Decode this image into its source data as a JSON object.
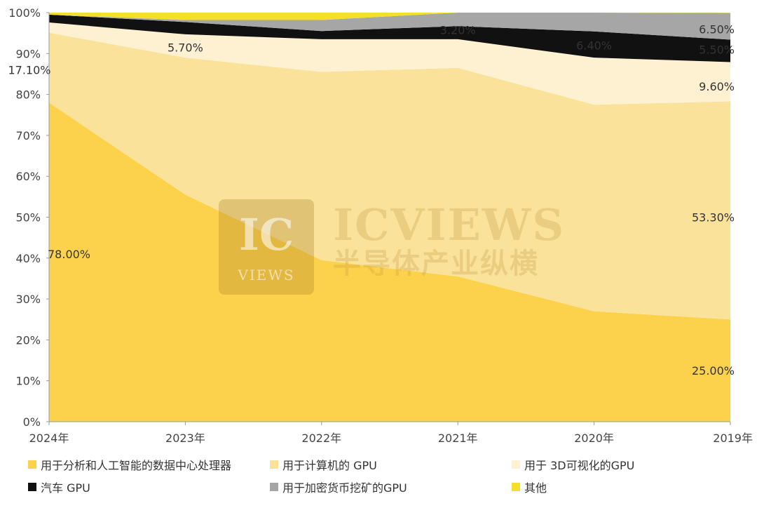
{
  "chart_data": {
    "type": "area",
    "stacked": true,
    "categories": [
      "2024年",
      "2023年",
      "2022年",
      "2021年",
      "2020年",
      "2019年"
    ],
    "y_ticks": [
      "0%",
      "10%",
      "20%",
      "30%",
      "40%",
      "50%",
      "60%",
      "70%",
      "80%",
      "90%",
      "100%"
    ],
    "ylim": [
      0,
      100
    ],
    "series": [
      {
        "name": "用于分析和人工智能的数据中心处理器",
        "color": "#FCD24D",
        "values": [
          78.0,
          55.5,
          39.5,
          35.5,
          27.0,
          25.0
        ]
      },
      {
        "name": "用于计算机的 GPU",
        "color": "#FBE29A",
        "values": [
          17.1,
          33.5,
          46.0,
          51.0,
          50.5,
          53.3
        ]
      },
      {
        "name": "用于 3D可视化的GPU",
        "color": "#FDF1D2",
        "values": [
          2.5,
          5.7,
          8.0,
          7.0,
          11.5,
          9.6
        ]
      },
      {
        "name": "汽车 GPU",
        "color": "#111111",
        "values": [
          1.9,
          3.0,
          2.0,
          3.2,
          6.4,
          5.5
        ]
      },
      {
        "name": "用于加密货币挖矿的GPU",
        "color": "#A6A6A6",
        "values": [
          0.0,
          0.5,
          2.7,
          3.3,
          4.6,
          6.5
        ]
      },
      {
        "name": "其他",
        "color": "#F4E02A",
        "values": [
          0.5,
          1.8,
          1.8,
          0.0,
          0.0,
          0.1
        ]
      }
    ],
    "data_labels": [
      {
        "text": "78.00%",
        "x": "2024年",
        "y": 41,
        "anchor": "start"
      },
      {
        "text": "17.10%",
        "x": "2024年",
        "y": 86,
        "anchor": "middle"
      },
      {
        "text": "5.70%",
        "x": "2023年",
        "y": 91.5,
        "anchor": "middle"
      },
      {
        "text": "3.20%",
        "x": "2021年",
        "y": 95.8,
        "anchor": "middle"
      },
      {
        "text": "6.40%",
        "x": "2020年",
        "y": 92,
        "anchor": "middle"
      },
      {
        "text": "6.50%",
        "x": "2019年",
        "y": 96,
        "anchor": "end"
      },
      {
        "text": "5.50%",
        "x": "2019年",
        "y": 91,
        "anchor": "end"
      },
      {
        "text": "9.60%",
        "x": "2019年",
        "y": 82,
        "anchor": "end"
      },
      {
        "text": "53.30%",
        "x": "2019年",
        "y": 50,
        "anchor": "end"
      },
      {
        "text": "25.00%",
        "x": "2019年",
        "y": 12.5,
        "anchor": "end"
      }
    ],
    "legend_position": "bottom",
    "grid": false
  },
  "watermark": {
    "logo_main": "IC",
    "logo_sub": "VIEWS",
    "brand_en": "ICVIEWS",
    "brand_cn": "半导体产业纵横"
  }
}
